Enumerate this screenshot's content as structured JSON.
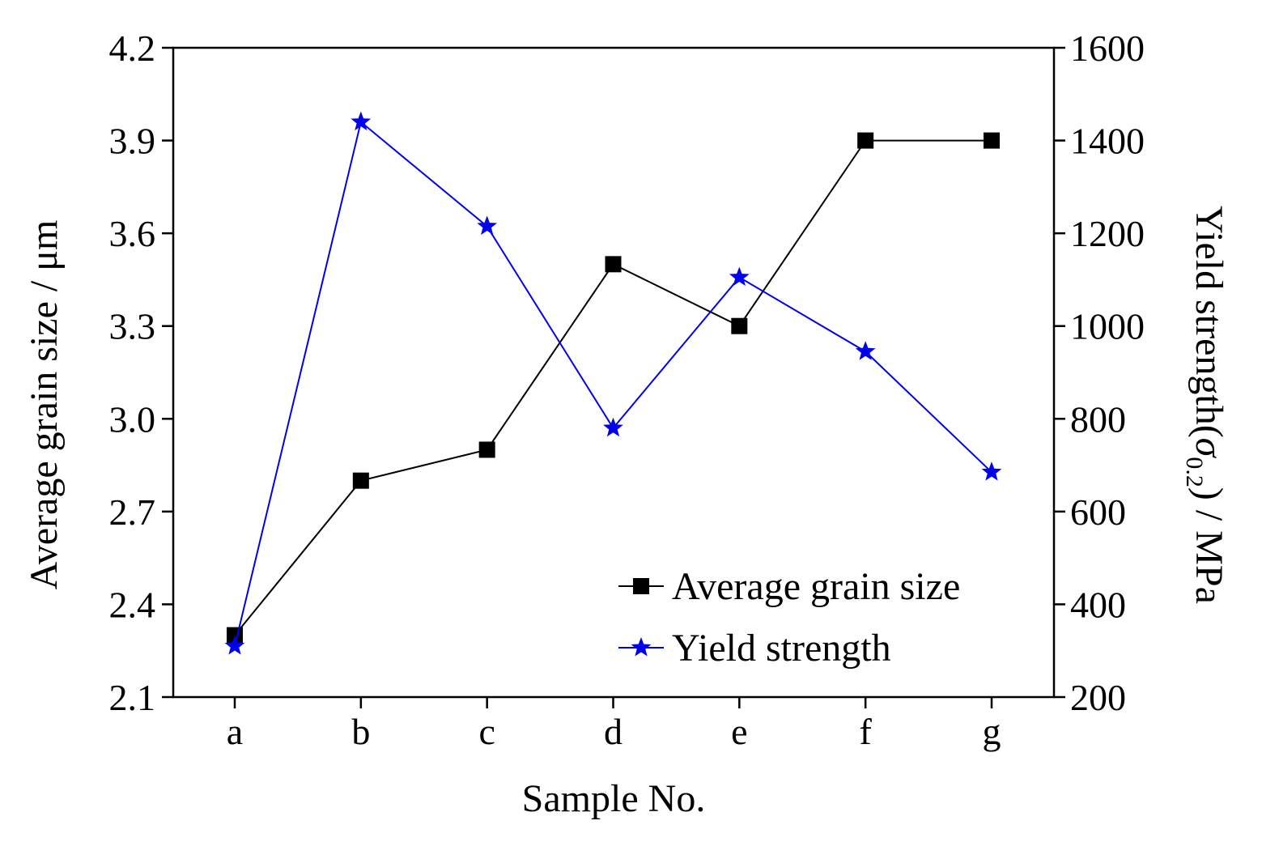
{
  "chart_data": {
    "type": "line",
    "categories": [
      "a",
      "b",
      "c",
      "d",
      "e",
      "f",
      "g"
    ],
    "xlabel": "Sample No.",
    "ylabel_left": "Average grain size / μm",
    "ylabel_right": {
      "prefix": "Yield strength(",
      "sigma": "σ",
      "subscript": "0.2",
      "suffix": ") / MPa"
    },
    "y_left_lim": [
      2.1,
      4.2
    ],
    "y_left_ticks": [
      "2.1",
      "2.4",
      "2.7",
      "3.0",
      "3.3",
      "3.6",
      "3.9",
      "4.2"
    ],
    "y_right_lim": [
      200,
      1600
    ],
    "y_right_ticks": [
      "200",
      "400",
      "600",
      "800",
      "1000",
      "1200",
      "1400",
      "1600"
    ],
    "series": [
      {
        "name": "Average grain size",
        "axis": "left",
        "marker": "square",
        "color": "#000000",
        "values": [
          2.3,
          2.8,
          2.9,
          3.5,
          3.3,
          3.9,
          3.9
        ]
      },
      {
        "name": "Yield strength",
        "axis": "right",
        "marker": "star",
        "color": "#0000ee",
        "values": [
          310,
          1440,
          1215,
          780,
          1105,
          945,
          685
        ]
      }
    ],
    "legend_position": "bottom-right"
  }
}
